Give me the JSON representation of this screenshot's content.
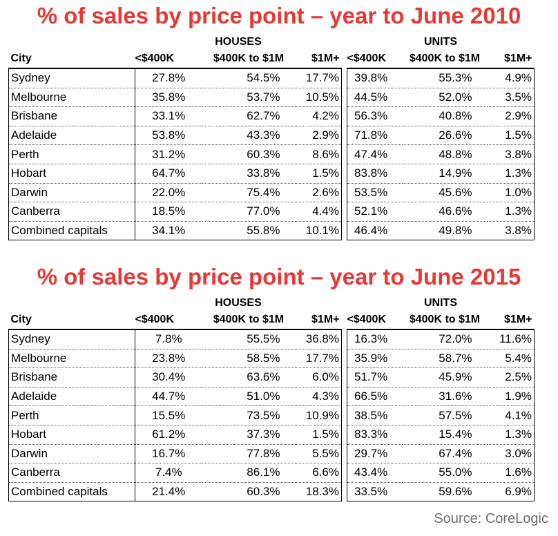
{
  "tables": [
    {
      "title": "% of sales by price point – year to June 2010",
      "group_labels": {
        "houses": "HOUSES",
        "units": "UNITS"
      },
      "headers": {
        "city": "City",
        "h1": "<$400K",
        "h2": "$400K to $1M",
        "h3": "$1M+",
        "u1": "<$400K",
        "u2": "$400K to $1M",
        "u3": "$1M+"
      },
      "rows": [
        {
          "city": "Sydney",
          "h1": "27.8%",
          "h2": "54.5%",
          "h3": "17.7%",
          "u1": "39.8%",
          "u2": "55.3%",
          "u3": "4.9%"
        },
        {
          "city": "Melbourne",
          "h1": "35.8%",
          "h2": "53.7%",
          "h3": "10.5%",
          "u1": "44.5%",
          "u2": "52.0%",
          "u3": "3.5%"
        },
        {
          "city": "Brisbane",
          "h1": "33.1%",
          "h2": "62.7%",
          "h3": "4.2%",
          "u1": "56.3%",
          "u2": "40.8%",
          "u3": "2.9%"
        },
        {
          "city": "Adelaide",
          "h1": "53.8%",
          "h2": "43.3%",
          "h3": "2.9%",
          "u1": "71.8%",
          "u2": "26.6%",
          "u3": "1.5%"
        },
        {
          "city": "Perth",
          "h1": "31.2%",
          "h2": "60.3%",
          "h3": "8.6%",
          "u1": "47.4%",
          "u2": "48.8%",
          "u3": "3.8%"
        },
        {
          "city": "Hobart",
          "h1": "64.7%",
          "h2": "33.8%",
          "h3": "1.5%",
          "u1": "83.8%",
          "u2": "14.9%",
          "u3": "1.3%"
        },
        {
          "city": "Darwin",
          "h1": "22.0%",
          "h2": "75.4%",
          "h3": "2.6%",
          "u1": "53.5%",
          "u2": "45.6%",
          "u3": "1.0%"
        },
        {
          "city": "Canberra",
          "h1": "18.5%",
          "h2": "77.0%",
          "h3": "4.4%",
          "u1": "52.1%",
          "u2": "46.6%",
          "u3": "1.3%"
        },
        {
          "city": "Combined capitals",
          "h1": "34.1%",
          "h2": "55.8%",
          "h3": "10.1%",
          "u1": "46.4%",
          "u2": "49.8%",
          "u3": "3.8%"
        }
      ]
    },
    {
      "title": "% of sales by price point – year to June 2015",
      "group_labels": {
        "houses": "HOUSES",
        "units": "UNITS"
      },
      "headers": {
        "city": "City",
        "h1": "<$400K",
        "h2": "$400K to $1M",
        "h3": "$1M+",
        "u1": "<$400K",
        "u2": "$400K to $1M",
        "u3": "$1M+"
      },
      "rows": [
        {
          "city": "Sydney",
          "h1": "7.8%",
          "h2": "55.5%",
          "h3": "36.8%",
          "u1": "16.3%",
          "u2": "72.0%",
          "u3": "11.6%"
        },
        {
          "city": "Melbourne",
          "h1": "23.8%",
          "h2": "58.5%",
          "h3": "17.7%",
          "u1": "35.9%",
          "u2": "58.7%",
          "u3": "5.4%"
        },
        {
          "city": "Brisbane",
          "h1": "30.4%",
          "h2": "63.6%",
          "h3": "6.0%",
          "u1": "51.7%",
          "u2": "45.9%",
          "u3": "2.5%"
        },
        {
          "city": "Adelaide",
          "h1": "44.7%",
          "h2": "51.0%",
          "h3": "4.3%",
          "u1": "66.5%",
          "u2": "31.6%",
          "u3": "1.9%"
        },
        {
          "city": "Perth",
          "h1": "15.5%",
          "h2": "73.5%",
          "h3": "10.9%",
          "u1": "38.5%",
          "u2": "57.5%",
          "u3": "4.1%"
        },
        {
          "city": "Hobart",
          "h1": "61.2%",
          "h2": "37.3%",
          "h3": "1.5%",
          "u1": "83.3%",
          "u2": "15.4%",
          "u3": "1.3%"
        },
        {
          "city": "Darwin",
          "h1": "16.7%",
          "h2": "77.8%",
          "h3": "5.5%",
          "u1": "29.7%",
          "u2": "67.4%",
          "u3": "3.0%"
        },
        {
          "city": "Canberra",
          "h1": "7.4%",
          "h2": "86.1%",
          "h3": "6.6%",
          "u1": "43.4%",
          "u2": "55.0%",
          "u3": "1.6%"
        },
        {
          "city": "Combined capitals",
          "h1": "21.4%",
          "h2": "60.3%",
          "h3": "18.3%",
          "u1": "33.5%",
          "u2": "59.6%",
          "u3": "6.9%"
        }
      ]
    }
  ],
  "source": "Source: CoreLogic",
  "colors": {
    "title": "#e53935",
    "source": "#6d6d6d"
  }
}
